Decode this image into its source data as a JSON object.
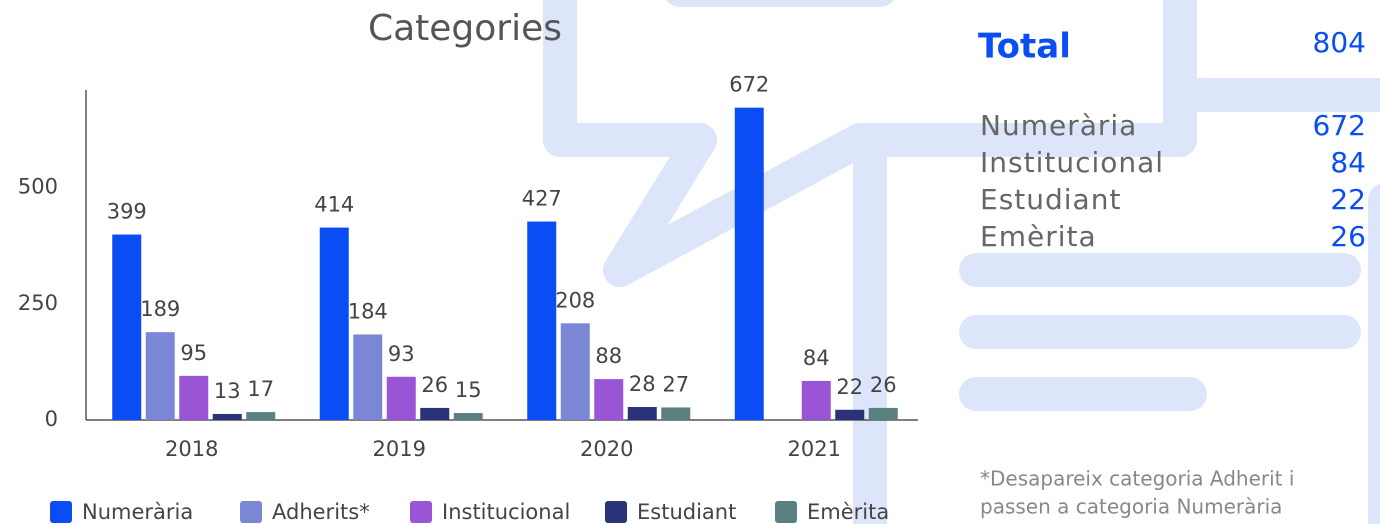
{
  "chart_data": {
    "type": "bar",
    "title": "Categories",
    "categories": [
      "2018",
      "2019",
      "2020",
      "2021"
    ],
    "series": [
      {
        "name": "Numerària",
        "color": "#0a4df5",
        "values": [
          399,
          414,
          427,
          672
        ]
      },
      {
        "name": "Adherits*",
        "color": "#7b86d4",
        "values": [
          189,
          184,
          208,
          null
        ]
      },
      {
        "name": "Institucional",
        "color": "#9a55d6",
        "values": [
          95,
          93,
          88,
          84
        ]
      },
      {
        "name": "Estudiant",
        "color": "#2b3378",
        "values": [
          13,
          26,
          28,
          22
        ]
      },
      {
        "name": "Emèrita",
        "color": "#5b8080",
        "values": [
          17,
          15,
          27,
          26
        ]
      }
    ],
    "ylim": [
      0,
      710
    ],
    "yticks": [
      0,
      250,
      500
    ]
  },
  "summary": {
    "total_label": "Total",
    "total_value": 804,
    "rows": [
      {
        "label": "Numerària",
        "value": 672
      },
      {
        "label": "Institucional",
        "value": 84
      },
      {
        "label": "Estudiant",
        "value": 22
      },
      {
        "label": "Emèrita",
        "value": 26
      }
    ],
    "note": [
      "*Desapareix categoria Adherit i",
      "passen a categoria Numerària"
    ]
  }
}
